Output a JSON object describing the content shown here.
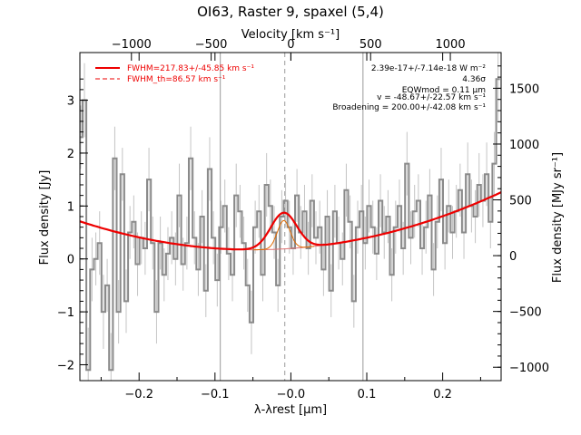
{
  "chart_data": {
    "type": "line",
    "title": "OI63, Raster 9, spaxel (5,4)",
    "xlabel": "λ-λrest [μm]",
    "ylabel": "Flux density [Jy]",
    "ylabel_right": "Flux density [MJy sr⁻¹]",
    "xlabel_top": "Velocity [km s⁻¹]",
    "xlim": [
      -0.278,
      0.277
    ],
    "ylim": [
      -2.3,
      3.9
    ],
    "ylim_right": [
      -1120,
      1820
    ],
    "velocity_per_um": 4760,
    "bottom_ticks": [
      -0.2,
      -0.1,
      0.0,
      0.1,
      0.2
    ],
    "bottom_tick_labels": [
      "−0.2",
      "−0.1",
      "−0.0",
      "0.1",
      "0.2"
    ],
    "top_ticks": [
      -1000,
      -500,
      0,
      500,
      1000
    ],
    "top_tick_labels": [
      "−1000",
      "−500",
      "0",
      "500",
      "1000"
    ],
    "left_ticks": [
      -2,
      -1,
      0,
      1,
      2,
      3
    ],
    "left_tick_labels": [
      "−2",
      "−1",
      "0",
      "1",
      "2",
      "3"
    ],
    "right_ticks": [
      -1000,
      -500,
      0,
      500,
      1000,
      1500
    ],
    "right_tick_labels": [
      "−1000",
      "−500",
      "0",
      "500",
      "1000",
      "1500"
    ],
    "vertical_lines": {
      "solid": [
        -0.093,
        0.095
      ],
      "dashed": [
        -0.008
      ]
    },
    "legend": {
      "position": "top-left",
      "items": [
        {
          "label": "FWHM=217.83+/-45.85 km s⁻¹",
          "style": "solid",
          "color": "#ee0000"
        },
        {
          "label": "FWHM_th=86.57 km s⁻¹",
          "style": "dashed",
          "color": "#ee0000"
        }
      ]
    },
    "annotations": [
      "2.39e-17+/-7.14e-18 W m⁻²",
      "4.36σ",
      "EQWmod = 0.11 μm",
      "v = -48.67+/-22.57 km s⁻¹",
      "Broadening = 200.00+/-42.08 km s⁻¹"
    ],
    "fit": {
      "continuum_quadratic_coefficients": [
        0.198,
        1.0,
        10.23
      ],
      "gaussian_center": -0.0094,
      "gaussian_amplitude": 0.685,
      "gaussian_sigma": 0.0172,
      "narrow_sigma": 0.0085,
      "color": "#ee0000"
    },
    "series": [
      {
        "color": "#888888",
        "x": [
          -0.277,
          -0.272,
          -0.267,
          -0.262,
          -0.257,
          -0.252,
          -0.247,
          -0.242,
          -0.237,
          -0.232,
          -0.227,
          -0.222,
          -0.217,
          -0.212,
          -0.207,
          -0.202,
          -0.197,
          -0.192,
          -0.187,
          -0.182,
          -0.177,
          -0.172,
          -0.167,
          -0.162,
          -0.157,
          -0.152,
          -0.147,
          -0.142,
          -0.137,
          -0.132,
          -0.127,
          -0.122,
          -0.117,
          -0.112,
          -0.107,
          -0.102,
          -0.097,
          -0.092,
          -0.087,
          -0.082,
          -0.077,
          -0.072,
          -0.067,
          -0.062,
          -0.057,
          -0.052,
          -0.047,
          -0.042,
          -0.037,
          -0.032,
          -0.027,
          -0.022,
          -0.017,
          -0.012,
          -0.007,
          -0.002,
          0.003,
          0.008,
          0.013,
          0.018,
          0.023,
          0.028,
          0.033,
          0.038,
          0.043,
          0.048,
          0.053,
          0.058,
          0.063,
          0.068,
          0.073,
          0.078,
          0.083,
          0.088,
          0.093,
          0.098,
          0.103,
          0.108,
          0.113,
          0.118,
          0.123,
          0.128,
          0.133,
          0.138,
          0.143,
          0.148,
          0.153,
          0.158,
          0.163,
          0.168,
          0.173,
          0.178,
          0.183,
          0.188,
          0.193,
          0.198,
          0.203,
          0.208,
          0.213,
          0.218,
          0.223,
          0.228,
          0.233,
          0.238,
          0.243,
          0.248,
          0.253,
          0.258,
          0.263,
          0.268,
          0.273
        ],
        "y": [
          2.3,
          3.0,
          -2.1,
          -0.2,
          0.0,
          0.3,
          -1.0,
          -0.5,
          -2.1,
          1.9,
          -1.0,
          1.6,
          -0.8,
          0.5,
          0.7,
          -0.1,
          0.4,
          0.2,
          1.5,
          0.3,
          -1.0,
          0.3,
          -0.3,
          0.1,
          0.4,
          0.0,
          1.2,
          -0.1,
          0.3,
          1.9,
          0.4,
          -0.2,
          0.8,
          -0.6,
          1.7,
          0.4,
          -0.4,
          0.6,
          1.0,
          0.1,
          -0.3,
          1.2,
          0.9,
          0.3,
          -0.5,
          -1.2,
          0.6,
          0.9,
          -0.3,
          1.4,
          1.0,
          0.5,
          -0.5,
          0.8,
          1.1,
          0.6,
          0.2,
          1.2,
          0.5,
          0.9,
          0.2,
          1.1,
          0.4,
          0.6,
          -0.2,
          0.8,
          -0.6,
          0.9,
          0.3,
          0.0,
          1.3,
          0.7,
          -0.8,
          0.6,
          0.9,
          0.3,
          1.0,
          0.6,
          0.1,
          1.1,
          0.5,
          0.8,
          -0.3,
          0.6,
          1.0,
          0.2,
          1.8,
          0.4,
          0.9,
          1.1,
          0.2,
          0.6,
          1.2,
          -0.2,
          0.7,
          1.5,
          0.3,
          1.0,
          0.5,
          0.9,
          1.3,
          0.5,
          1.6,
          1.0,
          0.8,
          1.4,
          1.1,
          1.6,
          0.7,
          1.8,
          3.4
        ],
        "yerr": [
          0.6,
          0.7,
          0.8,
          0.6,
          0.5,
          0.6,
          0.7,
          0.5,
          0.7,
          0.6,
          0.6,
          0.5,
          0.6,
          0.5,
          0.5,
          0.6,
          0.5,
          0.5,
          0.6,
          0.5,
          0.6,
          0.5,
          0.5,
          0.5,
          0.5,
          0.5,
          0.6,
          0.5,
          0.5,
          0.6,
          0.5,
          0.5,
          0.5,
          0.5,
          0.6,
          0.5,
          0.5,
          0.5,
          0.5,
          0.5,
          0.5,
          0.6,
          0.5,
          0.5,
          0.5,
          0.6,
          0.5,
          0.5,
          0.5,
          0.6,
          0.5,
          0.5,
          0.5,
          0.5,
          0.5,
          0.5,
          0.5,
          0.5,
          0.5,
          0.5,
          0.5,
          0.5,
          0.5,
          0.5,
          0.5,
          0.5,
          0.5,
          0.5,
          0.5,
          0.5,
          0.5,
          0.5,
          0.5,
          0.5,
          0.5,
          0.5,
          0.5,
          0.5,
          0.5,
          0.5,
          0.5,
          0.5,
          0.5,
          0.5,
          0.5,
          0.5,
          0.6,
          0.5,
          0.5,
          0.5,
          0.5,
          0.5,
          0.5,
          0.5,
          0.5,
          0.6,
          0.5,
          0.5,
          0.5,
          0.5,
          0.5,
          0.5,
          0.6,
          0.5,
          0.5,
          0.6,
          0.5,
          0.6,
          0.5,
          0.6,
          0.8
        ]
      }
    ]
  }
}
